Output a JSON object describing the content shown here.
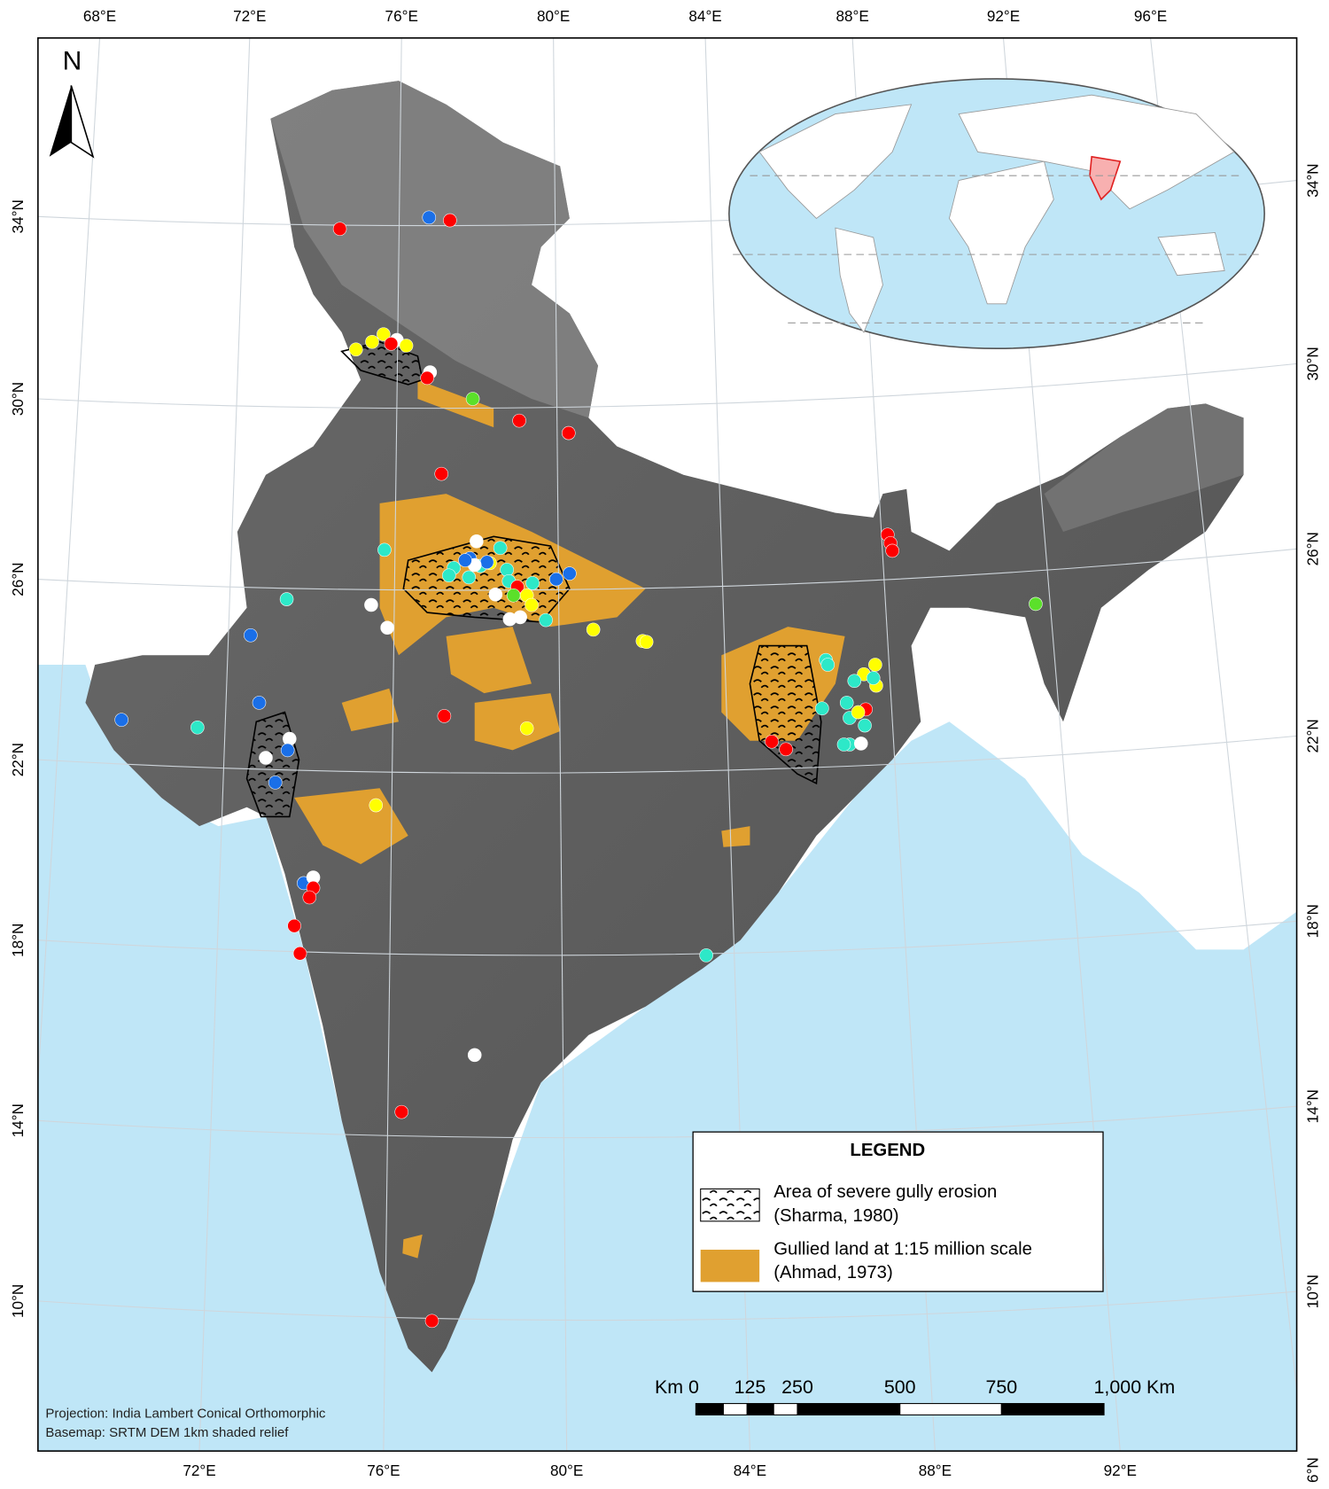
{
  "north_arrow": "N",
  "graticule": {
    "top": [
      "68°E",
      "72°E",
      "76°E",
      "80°E",
      "84°E",
      "88°E",
      "92°E",
      "96°E"
    ],
    "bottom": [
      "72°E",
      "76°E",
      "80°E",
      "84°E",
      "88°E",
      "92°E"
    ],
    "left": [
      "34°N",
      "30°N",
      "26°N",
      "22°N",
      "18°N",
      "14°N",
      "10°N"
    ],
    "right": [
      "34°N",
      "30°N",
      "26°N",
      "22°N",
      "18°N",
      "14°N",
      "10°N",
      "6°N"
    ]
  },
  "legend": {
    "title": "LEGEND",
    "items": [
      {
        "label": [
          "Area of severe gully erosion",
          "(Sharma, 1980)"
        ]
      },
      {
        "label": [
          "Gullied land at 1:15 million scale",
          "(Ahmad, 1973)"
        ]
      }
    ]
  },
  "scale_bar": {
    "labels": [
      "Km 0",
      "125",
      "250",
      "500",
      "750",
      "1,000 Km"
    ]
  },
  "notes": [
    "Projection: India Lambert Conical Orthomorphic",
    "Basemap: SRTM DEM 1km shaded relief"
  ]
}
